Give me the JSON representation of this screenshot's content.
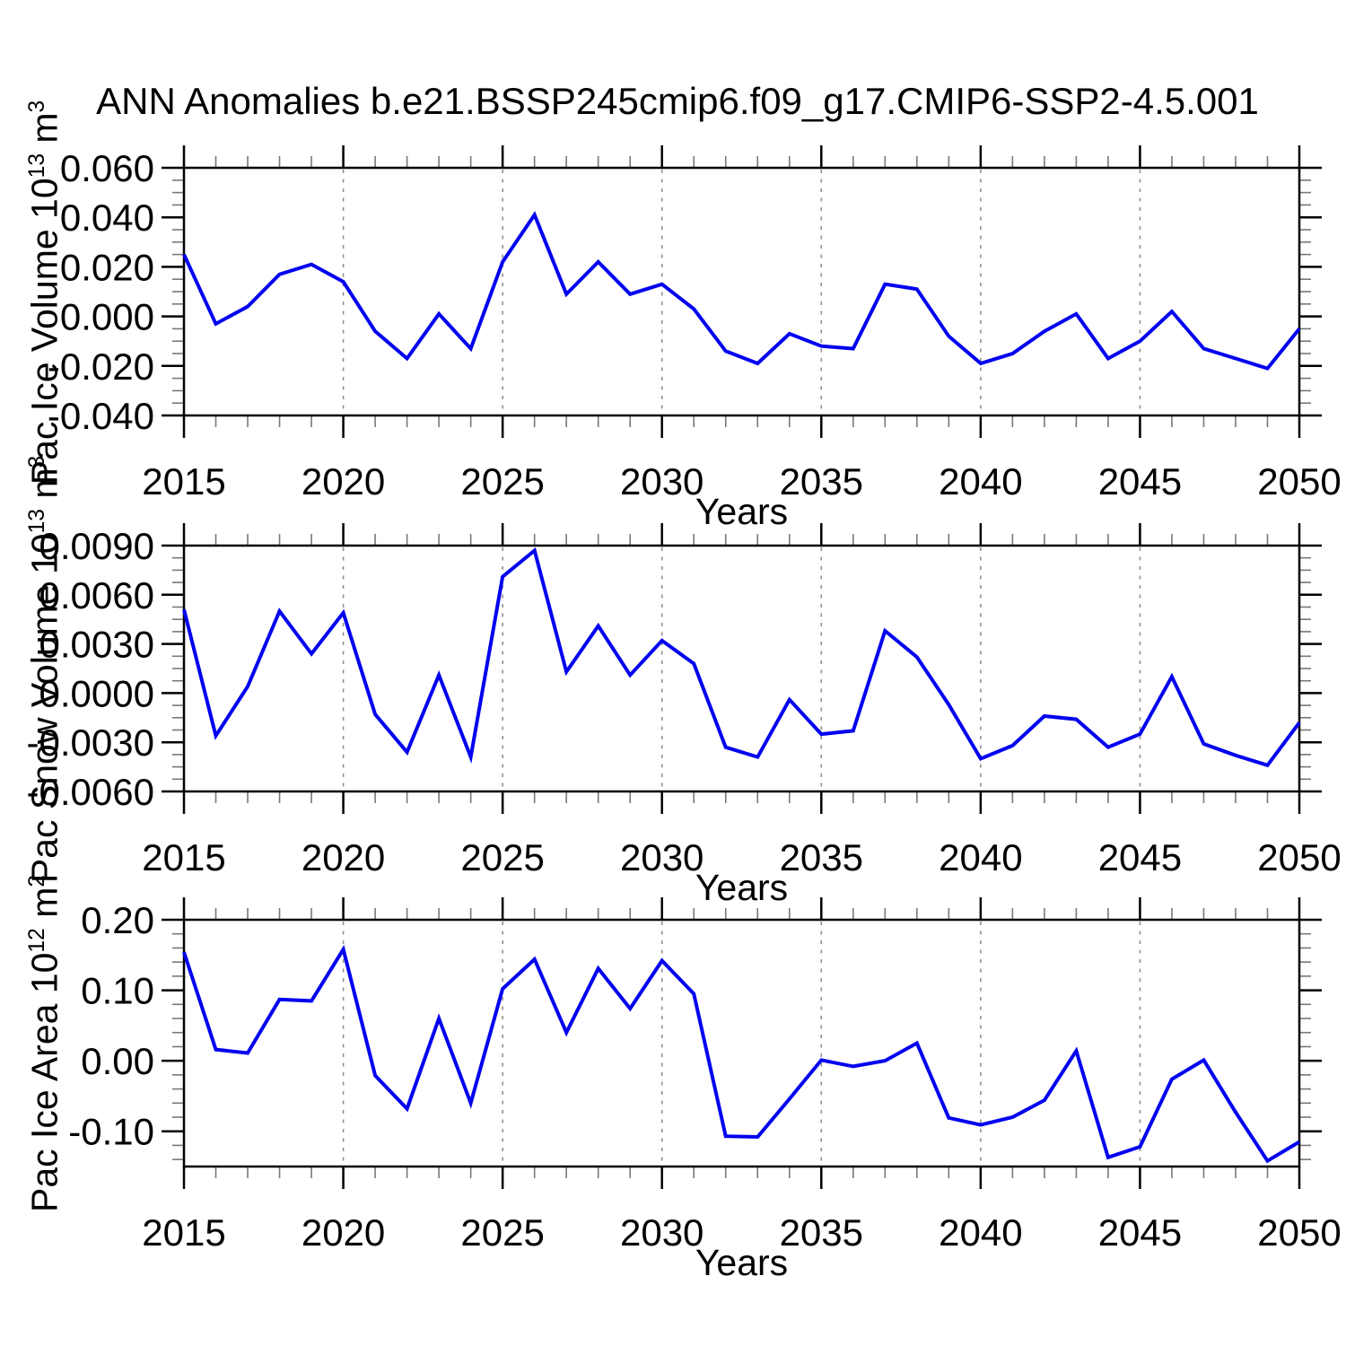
{
  "title": "ANN Anomalies b.e21.BSSP245cmip6.f09_g17.CMIP6-SSP2-4.5.001",
  "xlabel": "Years",
  "colors": {
    "line": "#0000f0",
    "grid": "#909090",
    "axis": "#000000",
    "minor_tick": "#787878",
    "text": "#000000",
    "background": "#ffffff"
  },
  "chart_data": [
    {
      "type": "line",
      "name": "pac-ice-volume",
      "ylabel": "Pac Ice Volume 10^13 m^3",
      "ylabel_parts": [
        "Pac Ice Volume 10",
        "13",
        " m",
        "3"
      ],
      "xlabel": "Years",
      "xlim": [
        2015,
        2050
      ],
      "ylim": [
        -0.04,
        0.06
      ],
      "grid": "vertical-dashed",
      "legend": "none",
      "x": [
        2015,
        2016,
        2017,
        2018,
        2019,
        2020,
        2021,
        2022,
        2023,
        2024,
        2025,
        2026,
        2027,
        2028,
        2029,
        2030,
        2031,
        2032,
        2033,
        2034,
        2035,
        2036,
        2037,
        2038,
        2039,
        2040,
        2041,
        2042,
        2043,
        2044,
        2045,
        2046,
        2047,
        2048,
        2049,
        2050
      ],
      "values": [
        0.025,
        -0.003,
        0.004,
        0.017,
        0.021,
        0.014,
        -0.006,
        -0.017,
        0.001,
        -0.013,
        0.022,
        0.041,
        0.009,
        0.022,
        0.009,
        0.013,
        0.003,
        -0.014,
        -0.019,
        -0.007,
        -0.012,
        -0.013,
        0.013,
        0.011,
        -0.008,
        -0.019,
        -0.015,
        -0.006,
        0.001,
        -0.017,
        -0.01,
        0.002,
        -0.013,
        -0.017,
        -0.021,
        -0.005
      ],
      "yticks": [
        0.06,
        0.04,
        0.02,
        0.0,
        -0.02,
        -0.04
      ],
      "ytick_labels": [
        "0.060",
        "0.040",
        "0.020",
        "0.000",
        "-0.020",
        "-0.040"
      ],
      "yminor_step": 0.005,
      "xticks": [
        2015,
        2020,
        2025,
        2030,
        2035,
        2040,
        2045,
        2050
      ],
      "xtick_labels": [
        "2015",
        "2020",
        "2025",
        "2030",
        "2035",
        "2040",
        "2045",
        "2050"
      ],
      "xminor_step": 1,
      "gridline_years": [
        2020,
        2025,
        2030,
        2035,
        2040,
        2045
      ]
    },
    {
      "type": "line",
      "name": "pac-snow-volume",
      "ylabel": "Pac Snow Volume 10^13 m^3",
      "ylabel_parts": [
        "Pac Snow Volume 10",
        "13",
        " m",
        "3"
      ],
      "xlabel": "Years",
      "xlim": [
        2015,
        2050
      ],
      "ylim": [
        -0.006,
        0.009
      ],
      "grid": "vertical-dashed",
      "legend": "none",
      "x": [
        2015,
        2016,
        2017,
        2018,
        2019,
        2020,
        2021,
        2022,
        2023,
        2024,
        2025,
        2026,
        2027,
        2028,
        2029,
        2030,
        2031,
        2032,
        2033,
        2034,
        2035,
        2036,
        2037,
        2038,
        2039,
        2040,
        2041,
        2042,
        2043,
        2044,
        2045,
        2046,
        2047,
        2048,
        2049,
        2050
      ],
      "values": [
        0.0051,
        -0.0026,
        0.0004,
        0.005,
        0.0024,
        0.0049,
        -0.0013,
        -0.0036,
        0.0011,
        -0.0039,
        0.0071,
        0.0087,
        0.0013,
        0.0041,
        0.0011,
        0.0032,
        0.0018,
        -0.0033,
        -0.0039,
        -0.0004,
        -0.0025,
        -0.0023,
        0.0038,
        0.0022,
        -0.0007,
        -0.004,
        -0.0032,
        -0.0014,
        -0.0016,
        -0.0033,
        -0.0025,
        0.001,
        -0.0031,
        -0.0038,
        -0.0044,
        -0.0018
      ],
      "yticks": [
        0.009,
        0.006,
        0.003,
        0.0,
        -0.003,
        -0.006
      ],
      "ytick_labels": [
        "0.0090",
        "0.0060",
        "0.0030",
        "0.0000",
        "-0.0030",
        "-0.0060"
      ],
      "yminor_step": 0.00075,
      "xticks": [
        2015,
        2020,
        2025,
        2030,
        2035,
        2040,
        2045,
        2050
      ],
      "xtick_labels": [
        "2015",
        "2020",
        "2025",
        "2030",
        "2035",
        "2040",
        "2045",
        "2050"
      ],
      "xminor_step": 1,
      "gridline_years": [
        2020,
        2025,
        2030,
        2035,
        2040,
        2045
      ]
    },
    {
      "type": "line",
      "name": "pac-ice-area",
      "ylabel": "Pac Ice Area 10^12 m^2",
      "ylabel_parts": [
        "Pac Ice Area 10",
        "12",
        " m",
        "2"
      ],
      "xlabel": "Years",
      "xlim": [
        2015,
        2050
      ],
      "ylim": [
        -0.15,
        0.2
      ],
      "grid": "vertical-dashed",
      "legend": "none",
      "x": [
        2015,
        2016,
        2017,
        2018,
        2019,
        2020,
        2021,
        2022,
        2023,
        2024,
        2025,
        2026,
        2027,
        2028,
        2029,
        2030,
        2031,
        2032,
        2033,
        2034,
        2035,
        2036,
        2037,
        2038,
        2039,
        2040,
        2041,
        2042,
        2043,
        2044,
        2045,
        2046,
        2047,
        2048,
        2049,
        2050
      ],
      "values": [
        0.154,
        0.016,
        0.011,
        0.087,
        0.085,
        0.158,
        -0.021,
        -0.068,
        0.06,
        -0.06,
        0.102,
        0.144,
        0.04,
        0.131,
        0.074,
        0.142,
        0.095,
        -0.107,
        -0.108,
        -0.054,
        0.001,
        -0.008,
        0.0,
        0.025,
        -0.081,
        -0.091,
        -0.08,
        -0.056,
        0.014,
        -0.137,
        -0.122,
        -0.026,
        0.001,
        -0.073,
        -0.142,
        -0.115
      ],
      "yticks": [
        0.2,
        0.1,
        0.0,
        -0.1
      ],
      "ytick_labels": [
        "0.20",
        "0.10",
        "0.00",
        "-0.10"
      ],
      "yminor_step": 0.02,
      "xticks": [
        2015,
        2020,
        2025,
        2030,
        2035,
        2040,
        2045,
        2050
      ],
      "xtick_labels": [
        "2015",
        "2020",
        "2025",
        "2030",
        "2035",
        "2040",
        "2045",
        "2050"
      ],
      "xminor_step": 1,
      "gridline_years": [
        2020,
        2025,
        2030,
        2035,
        2040,
        2045
      ]
    }
  ]
}
